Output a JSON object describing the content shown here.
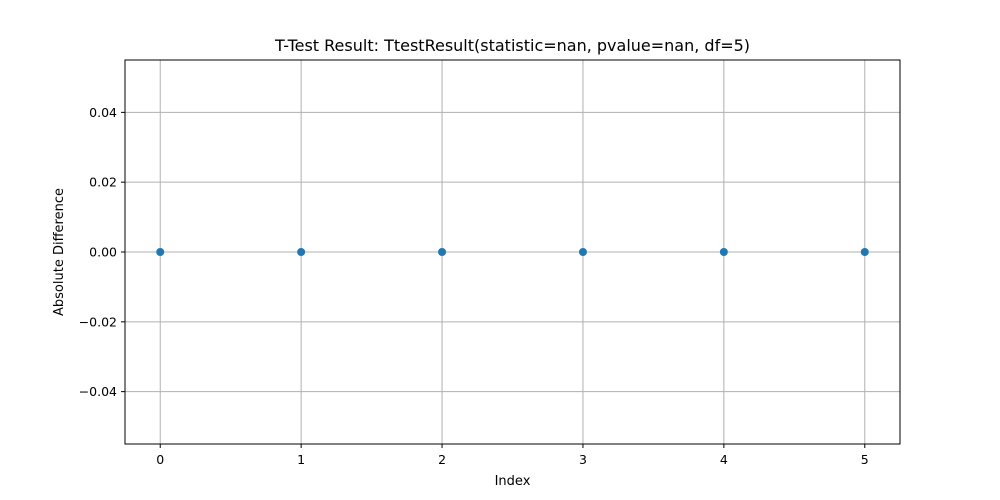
{
  "chart_data": {
    "type": "scatter",
    "title": "T-Test Result: TtestResult(statistic=nan, pvalue=nan, df=5)",
    "xlabel": "Index",
    "ylabel": "Absolute Difference",
    "x": [
      0,
      1,
      2,
      3,
      4,
      5
    ],
    "y": [
      0,
      0,
      0,
      0,
      0,
      0
    ],
    "xlim": [
      -0.25,
      5.25
    ],
    "ylim": [
      -0.055,
      0.055
    ],
    "x_ticks": [
      0,
      1,
      2,
      3,
      4,
      5
    ],
    "x_tick_labels": [
      "0",
      "1",
      "2",
      "3",
      "4",
      "5"
    ],
    "y_ticks": [
      0.04,
      0.02,
      0.0,
      -0.02,
      -0.04
    ],
    "y_tick_labels": [
      "0.04",
      "0.02",
      "0.00",
      "−0.02",
      "−0.04"
    ],
    "grid": true,
    "marker_color": "#1f77b4",
    "grid_color": "#b0b0b0"
  }
}
